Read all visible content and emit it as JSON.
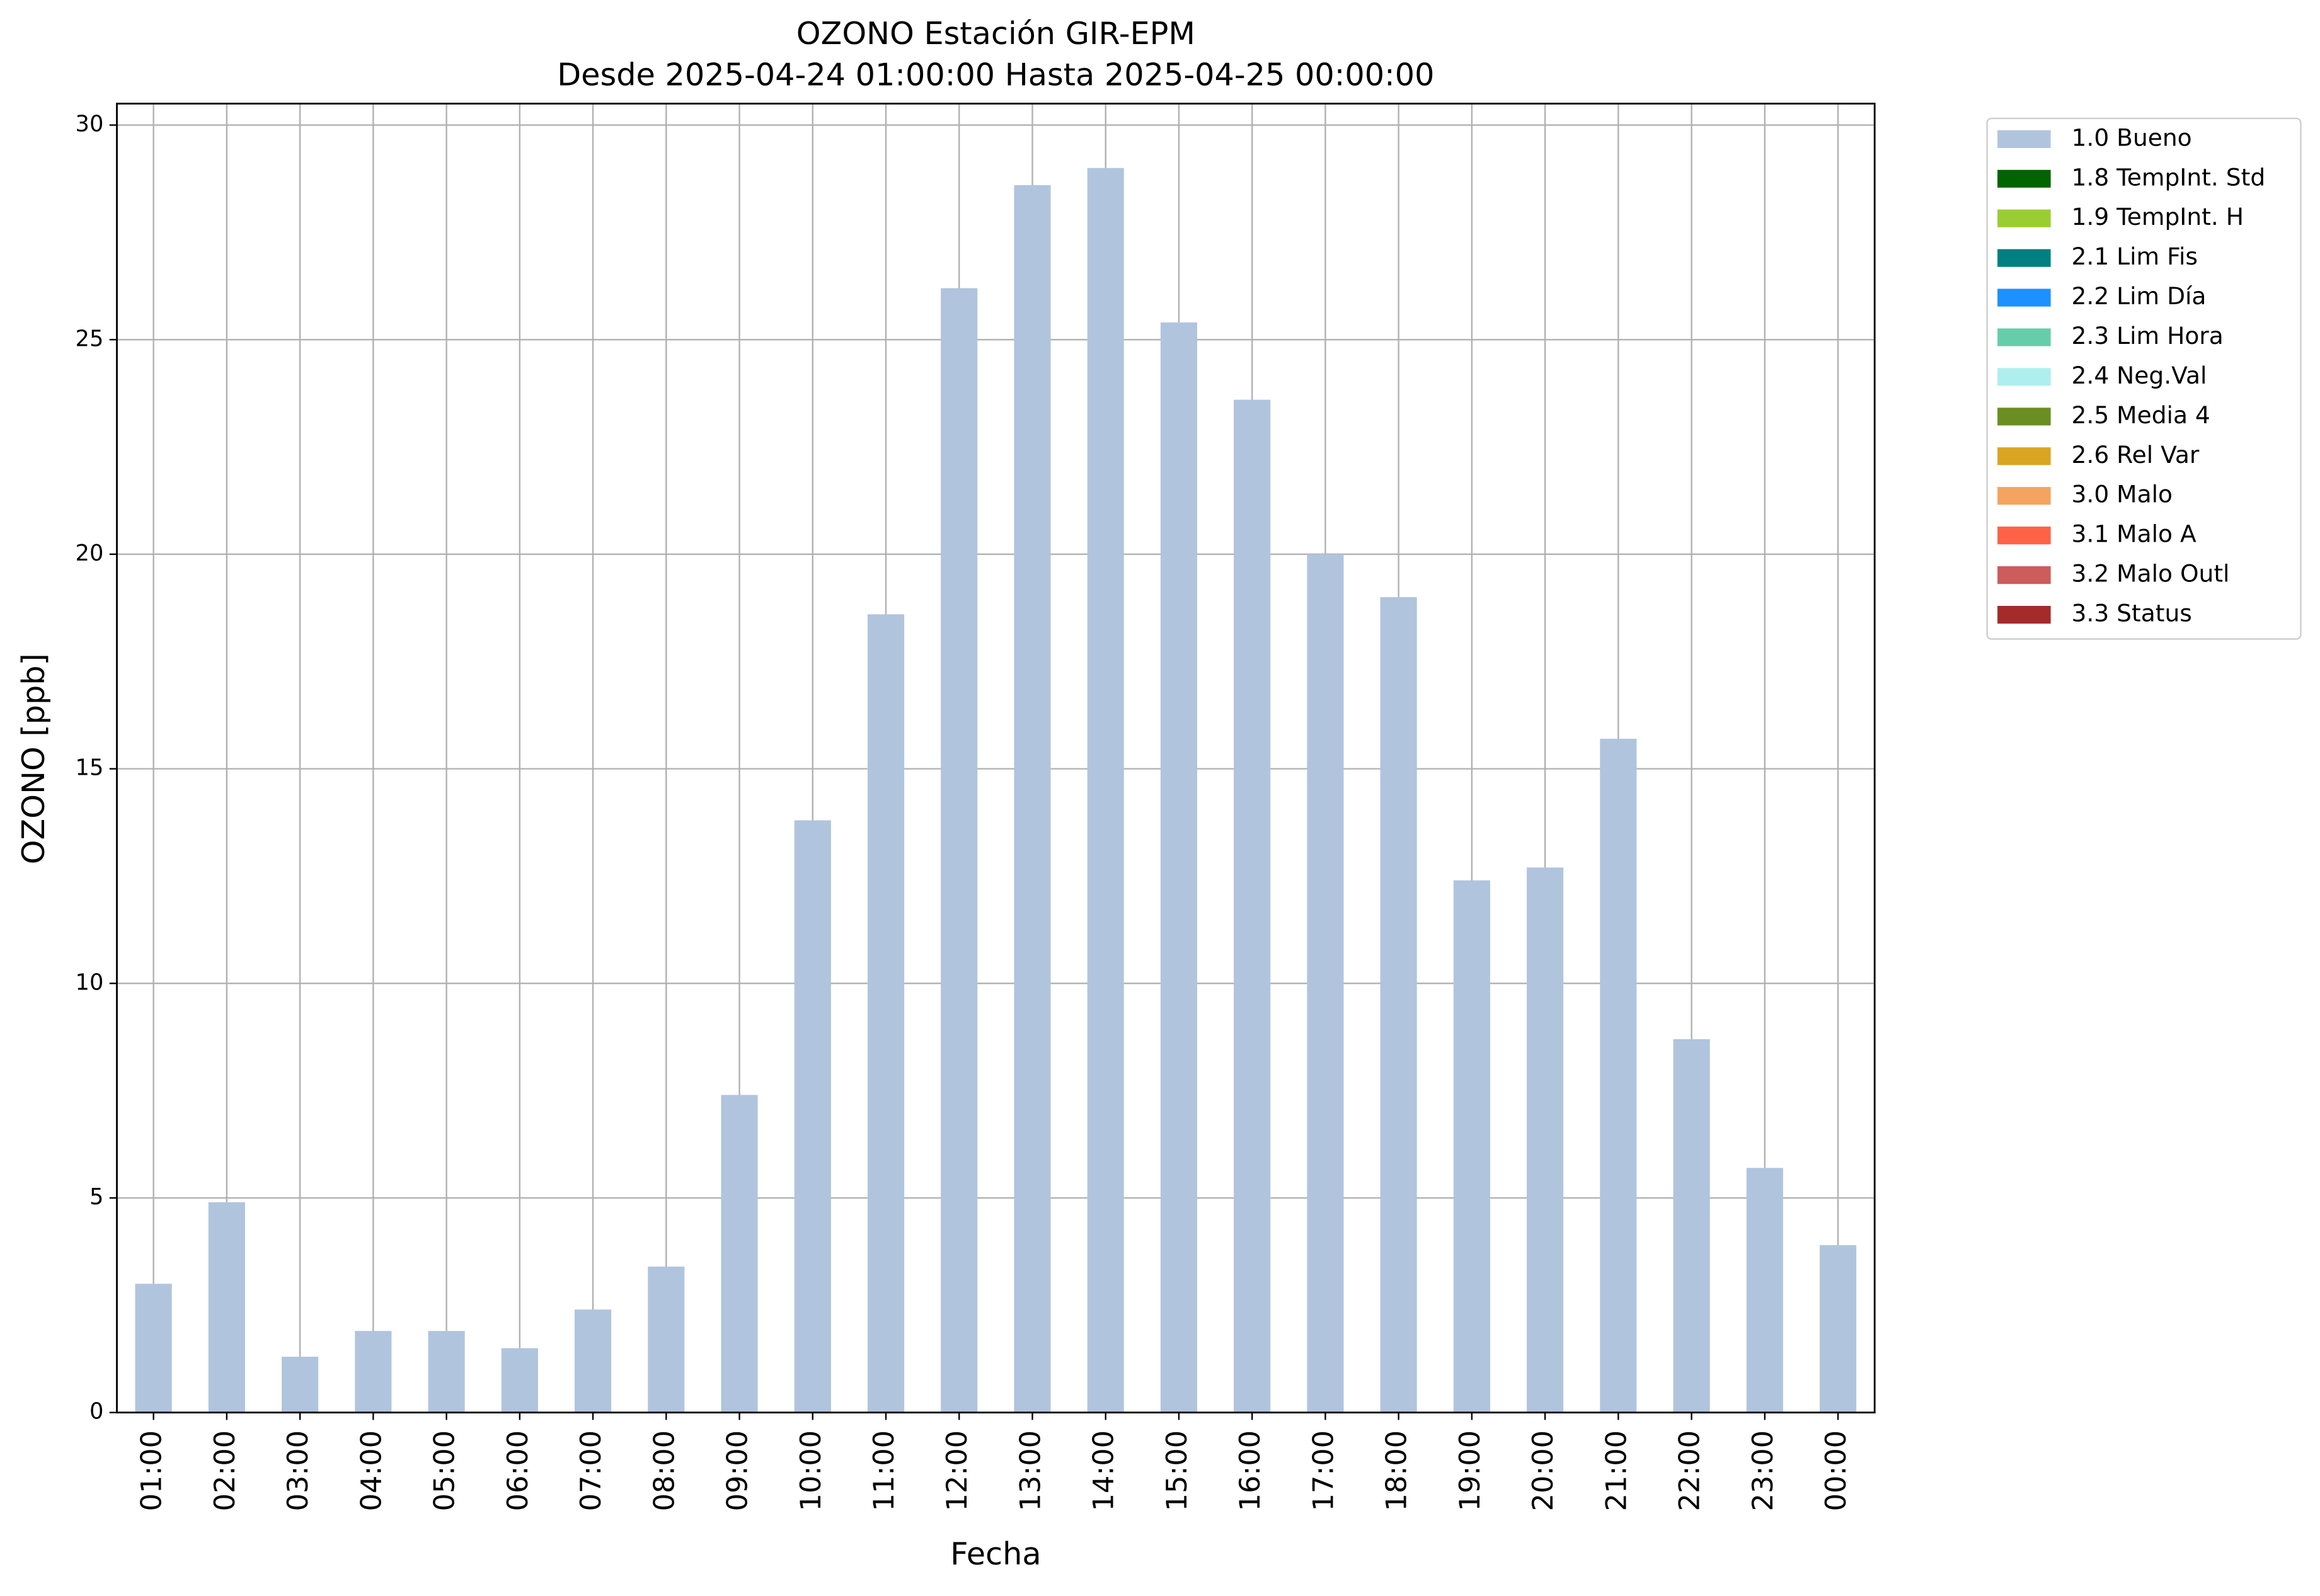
{
  "chart_data": {
    "type": "bar",
    "title": "OZONO Estación GIR-EPM",
    "subtitle": "Desde 2025-04-24 01:00:00 Hasta 2025-04-25 00:00:00",
    "x_label": "Fecha",
    "y_label": "OZONO [ppb]",
    "categories": [
      "01:00",
      "02:00",
      "03:00",
      "04:00",
      "05:00",
      "06:00",
      "07:00",
      "08:00",
      "09:00",
      "10:00",
      "11:00",
      "12:00",
      "13:00",
      "14:00",
      "15:00",
      "16:00",
      "17:00",
      "18:00",
      "19:00",
      "20:00",
      "21:00",
      "22:00",
      "23:00",
      "00:00"
    ],
    "series": [
      {
        "name": "1.0 Bueno",
        "color": "#b0c4de",
        "values": [
          3.0,
          4.9,
          1.3,
          1.9,
          1.9,
          1.5,
          2.4,
          3.4,
          7.4,
          13.8,
          18.6,
          26.2,
          28.6,
          29.0,
          25.4,
          23.6,
          20.0,
          19.0,
          12.4,
          12.7,
          15.7,
          8.7,
          5.7,
          3.9
        ]
      }
    ],
    "legend_entries": [
      {
        "name": "1.0 Bueno",
        "color": "#b0c4de"
      },
      {
        "name": "1.8 TempInt. Std",
        "color": "#006400"
      },
      {
        "name": "1.9 TempInt. H",
        "color": "#9acd32"
      },
      {
        "name": "2.1 Lim Fis",
        "color": "#008080"
      },
      {
        "name": "2.2 Lim Día",
        "color": "#1e90ff"
      },
      {
        "name": "2.3 Lim Hora",
        "color": "#66cdaa"
      },
      {
        "name": "2.4 Neg.Val",
        "color": "#afeeee"
      },
      {
        "name": "2.5 Media 4",
        "color": "#6b8e23"
      },
      {
        "name": "2.6 Rel Var",
        "color": "#daa520"
      },
      {
        "name": "3.0 Malo",
        "color": "#f4a460"
      },
      {
        "name": "3.1 Malo A",
        "color": "#ff6347"
      },
      {
        "name": "3.2 Malo Outl",
        "color": "#cd5c5c"
      },
      {
        "name": "3.3 Status",
        "color": "#a52a2a"
      }
    ],
    "ylim": [
      0,
      30.5
    ],
    "yticks": [
      0,
      5,
      10,
      15,
      20,
      25,
      30
    ],
    "grid": true,
    "legend_position": "outside right"
  }
}
